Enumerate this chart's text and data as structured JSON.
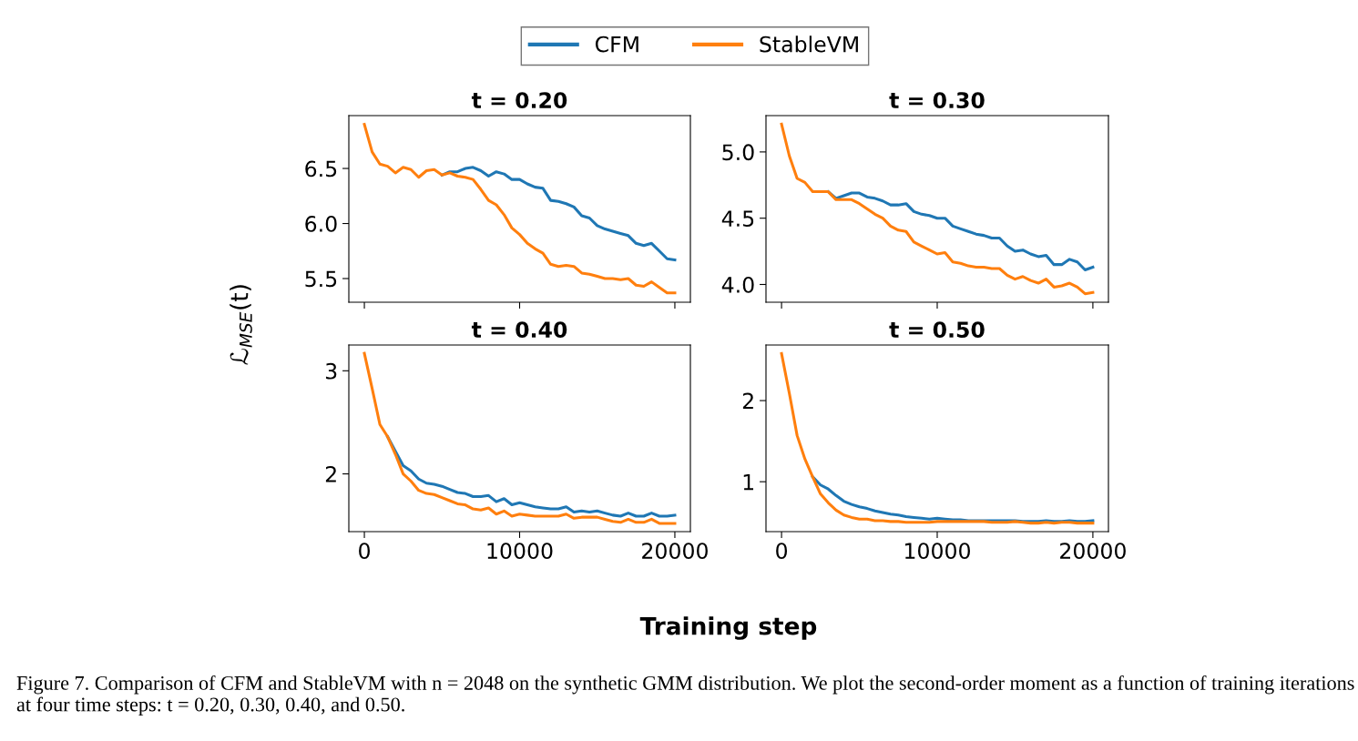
{
  "chart_data": [
    {
      "type": "line",
      "title": "t = 0.20",
      "xlabel": "Training step",
      "ylabel": "ℒ$_{MSE}$(t)",
      "legend": "top",
      "grid": false,
      "tick_labels": "y",
      "annotations": [
        "Figure 7. Comparison of CFM and StableVM with n = 2048 on the synthetic GMM distribution. We plot the second-order moment as a function of training iterations at four time steps: t = 0.20, 0.30, 0.40, and 0.50."
      ],
      "x": [
        0,
        500,
        1000,
        1500,
        2000,
        2500,
        3000,
        3500,
        4000,
        4500,
        5000,
        5500,
        6000,
        6500,
        7000,
        7500,
        8000,
        8500,
        9000,
        9500,
        10000,
        10500,
        11000,
        11500,
        12000,
        12500,
        13000,
        13500,
        14000,
        14500,
        15000,
        15500,
        16000,
        16500,
        17000,
        17500,
        18000,
        18500,
        19000,
        19500,
        20000
      ],
      "xlim": [
        -1000,
        21000
      ],
      "xticks": [
        0,
        10000,
        20000
      ],
      "ylim": [
        5.285,
        6.98
      ],
      "yticks": [
        5.5,
        {
          "value": 6,
          "label": "6.0"
        },
        6.5
      ],
      "series": [
        {
          "name": "CFM",
          "color": "#1f77b4",
          "values": [
            null,
            null,
            null,
            null,
            null,
            null,
            null,
            null,
            null,
            null,
            6.44,
            6.47,
            6.47,
            6.5,
            6.51,
            6.48,
            6.43,
            6.47,
            6.45,
            6.4,
            6.4,
            6.36,
            6.33,
            6.32,
            6.21,
            6.2,
            6.18,
            6.15,
            6.07,
            6.05,
            5.98,
            5.95,
            5.93,
            5.91,
            5.89,
            5.82,
            5.8,
            5.82,
            5.75,
            5.68,
            5.67
          ]
        },
        {
          "name": "StableVM",
          "color": "#ff7f0e",
          "values": [
            6.9,
            6.65,
            6.54,
            6.52,
            6.46,
            6.51,
            6.49,
            6.42,
            6.48,
            6.49,
            6.44,
            6.46,
            6.43,
            6.42,
            6.4,
            6.31,
            6.21,
            6.17,
            6.08,
            5.96,
            5.9,
            5.82,
            5.77,
            5.73,
            5.63,
            5.61,
            5.62,
            5.61,
            5.55,
            5.54,
            5.52,
            5.5,
            5.5,
            5.49,
            5.5,
            5.44,
            5.43,
            5.47,
            5.42,
            5.37,
            5.37
          ]
        }
      ]
    },
    {
      "type": "line",
      "title": "t = 0.30",
      "grid": false,
      "tick_labels": "y",
      "x": [
        0,
        500,
        1000,
        1500,
        2000,
        2500,
        3000,
        3500,
        4000,
        4500,
        5000,
        5500,
        6000,
        6500,
        7000,
        7500,
        8000,
        8500,
        9000,
        9500,
        10000,
        10500,
        11000,
        11500,
        12000,
        12500,
        13000,
        13500,
        14000,
        14500,
        15000,
        15500,
        16000,
        16500,
        17000,
        17500,
        18000,
        18500,
        19000,
        19500,
        20000
      ],
      "xlim": [
        -1000,
        21000
      ],
      "xticks": [
        0,
        10000,
        20000
      ],
      "ylim": [
        3.866,
        5.274
      ],
      "yticks": [
        {
          "value": 4,
          "label": "4.0"
        },
        4.5,
        {
          "value": 5,
          "label": "5.0"
        }
      ],
      "series": [
        {
          "color": "#1f77b4",
          "values": [
            null,
            null,
            null,
            null,
            null,
            null,
            4.7,
            4.65,
            4.67,
            4.69,
            4.69,
            4.66,
            4.65,
            4.63,
            4.6,
            4.6,
            4.61,
            4.55,
            4.53,
            4.52,
            4.5,
            4.5,
            4.44,
            4.42,
            4.4,
            4.38,
            4.37,
            4.35,
            4.35,
            4.29,
            4.25,
            4.26,
            4.23,
            4.21,
            4.22,
            4.15,
            4.15,
            4.19,
            4.17,
            4.11,
            4.13
          ]
        },
        {
          "color": "#ff7f0e",
          "values": [
            5.21,
            4.97,
            4.8,
            4.77,
            4.7,
            4.7,
            4.7,
            4.64,
            4.64,
            4.64,
            4.61,
            4.57,
            4.53,
            4.5,
            4.44,
            4.41,
            4.4,
            4.32,
            4.29,
            4.26,
            4.23,
            4.24,
            4.17,
            4.16,
            4.14,
            4.13,
            4.13,
            4.12,
            4.12,
            4.07,
            4.04,
            4.06,
            4.03,
            4.01,
            4.04,
            3.98,
            3.99,
            4.01,
            3.98,
            3.93,
            3.94
          ]
        }
      ]
    },
    {
      "type": "line",
      "title": "t = 0.40",
      "grid": false,
      "x": [
        0,
        500,
        1000,
        1500,
        2000,
        2500,
        3000,
        3500,
        4000,
        4500,
        5000,
        5500,
        6000,
        6500,
        7000,
        7500,
        8000,
        8500,
        9000,
        9500,
        10000,
        10500,
        11000,
        11500,
        12000,
        12500,
        13000,
        13500,
        14000,
        14500,
        15000,
        15500,
        16000,
        16500,
        17000,
        17500,
        18000,
        18500,
        19000,
        19500,
        20000
      ],
      "xlim": [
        -1000,
        21000
      ],
      "xticks": [
        0,
        10000,
        20000
      ],
      "ylim": [
        1.44,
        3.25
      ],
      "yticks": [
        2,
        3
      ],
      "series": [
        {
          "color": "#1f77b4",
          "values": [
            null,
            null,
            null,
            2.36,
            2.22,
            2.08,
            2.03,
            1.95,
            1.91,
            1.9,
            1.88,
            1.85,
            1.82,
            1.81,
            1.78,
            1.78,
            1.79,
            1.73,
            1.76,
            1.7,
            1.72,
            1.7,
            1.68,
            1.67,
            1.66,
            1.66,
            1.68,
            1.63,
            1.64,
            1.63,
            1.64,
            1.62,
            1.6,
            1.59,
            1.62,
            1.59,
            1.59,
            1.62,
            1.59,
            1.59,
            1.6
          ]
        },
        {
          "color": "#ff7f0e",
          "values": [
            3.17,
            2.83,
            2.48,
            2.36,
            2.19,
            2.0,
            1.93,
            1.84,
            1.81,
            1.8,
            1.77,
            1.74,
            1.71,
            1.7,
            1.66,
            1.65,
            1.67,
            1.61,
            1.64,
            1.59,
            1.61,
            1.6,
            1.59,
            1.59,
            1.59,
            1.59,
            1.61,
            1.57,
            1.58,
            1.58,
            1.58,
            1.56,
            1.54,
            1.53,
            1.56,
            1.53,
            1.53,
            1.56,
            1.52,
            1.52,
            1.52
          ]
        }
      ]
    },
    {
      "type": "line",
      "title": "t = 0.50",
      "grid": false,
      "x": [
        0,
        500,
        1000,
        1500,
        2000,
        2500,
        3000,
        3500,
        4000,
        4500,
        5000,
        5500,
        6000,
        6500,
        7000,
        7500,
        8000,
        8500,
        9000,
        9500,
        10000,
        10500,
        11000,
        11500,
        12000,
        12500,
        13000,
        13500,
        14000,
        14500,
        15000,
        15500,
        16000,
        16500,
        17000,
        17500,
        18000,
        18500,
        19000,
        19500,
        20000
      ],
      "xlim": [
        -1000,
        21000
      ],
      "xticks": [
        0,
        10000,
        20000
      ],
      "ylim": [
        0.385,
        2.685
      ],
      "yticks": [
        1,
        2
      ],
      "series": [
        {
          "color": "#1f77b4",
          "values": [
            null,
            null,
            null,
            null,
            1.06,
            0.96,
            0.91,
            0.83,
            0.76,
            0.72,
            0.69,
            0.67,
            0.64,
            0.62,
            0.6,
            0.59,
            0.57,
            0.56,
            0.55,
            0.54,
            0.55,
            0.54,
            0.53,
            0.53,
            0.52,
            0.52,
            0.52,
            0.52,
            0.52,
            0.52,
            0.52,
            0.51,
            0.51,
            0.51,
            0.52,
            0.51,
            0.51,
            0.52,
            0.51,
            0.51,
            0.52
          ]
        },
        {
          "color": "#ff7f0e",
          "values": [
            2.58,
            2.09,
            1.57,
            1.28,
            1.06,
            0.85,
            0.74,
            0.65,
            0.59,
            0.56,
            0.54,
            0.54,
            0.52,
            0.52,
            0.51,
            0.51,
            0.5,
            0.5,
            0.5,
            0.5,
            0.51,
            0.51,
            0.51,
            0.51,
            0.51,
            0.51,
            0.51,
            0.5,
            0.5,
            0.5,
            0.51,
            0.5,
            0.49,
            0.49,
            0.5,
            0.49,
            0.5,
            0.5,
            0.49,
            0.49,
            0.49
          ]
        }
      ]
    }
  ]
}
